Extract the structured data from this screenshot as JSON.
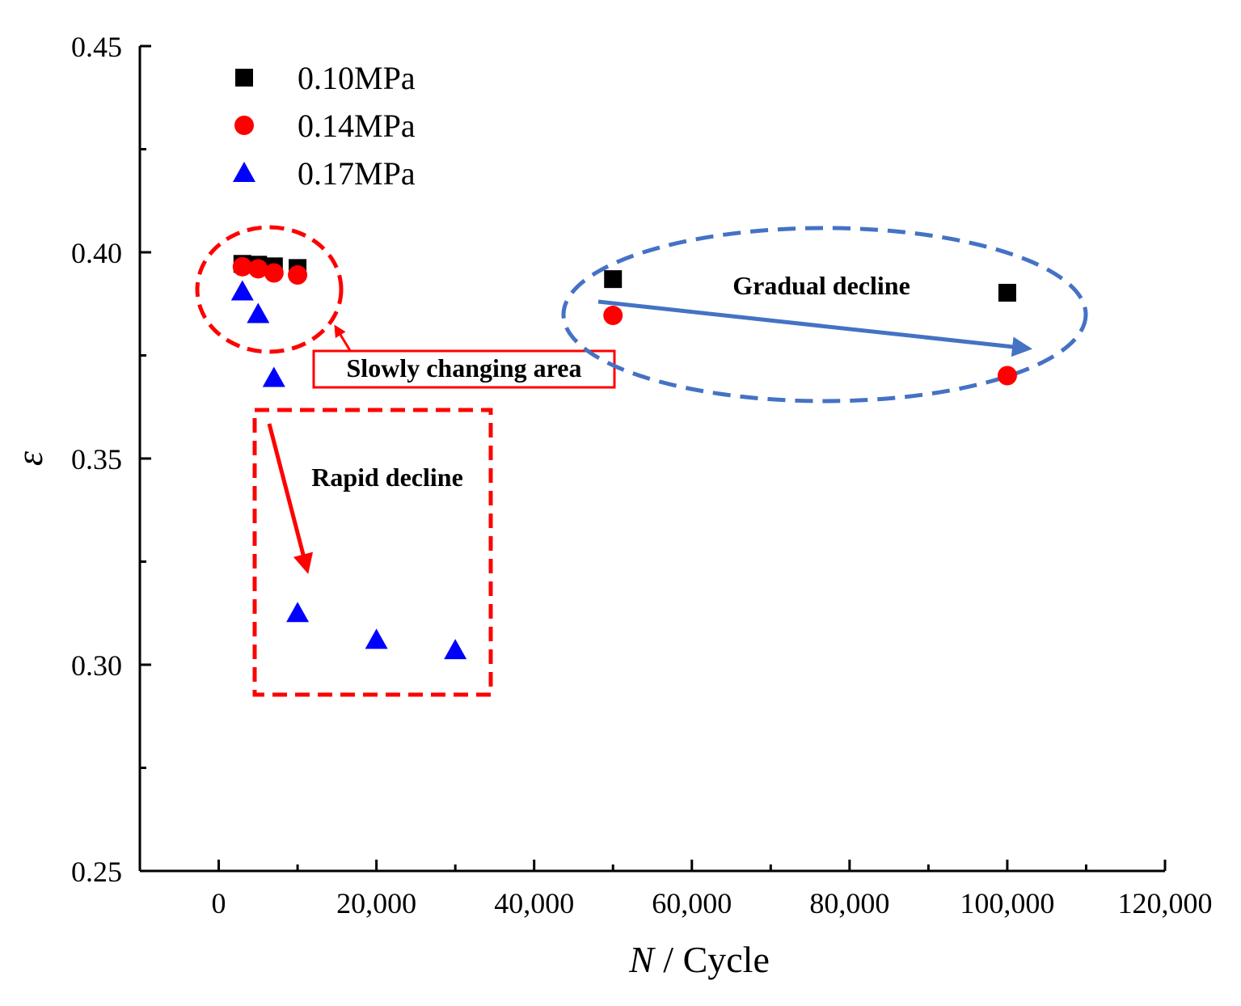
{
  "chart_data": {
    "type": "scatter",
    "title": "",
    "xlabel_var": "N",
    "xlabel_unit": " / Cycle",
    "ylabel": "ε",
    "xlim": [
      -10000,
      120000
    ],
    "ylim": [
      0.25,
      0.45
    ],
    "xticks": [
      0,
      20000,
      40000,
      60000,
      80000,
      100000,
      120000
    ],
    "xtick_labels": [
      "0",
      "20,000",
      "40,000",
      "60,000",
      "80,000",
      "100,000",
      "120,000"
    ],
    "yticks": [
      0.25,
      0.3,
      0.35,
      0.4,
      0.45
    ],
    "ytick_labels": [
      "0.25",
      "0.30",
      "0.35",
      "0.40",
      "0.45"
    ],
    "grid": false,
    "legend_position": "top-left",
    "series": [
      {
        "name": "0.10MPa",
        "marker": "square",
        "color": "#000000",
        "points": [
          [
            3000,
            0.3972
          ],
          [
            5000,
            0.397
          ],
          [
            7000,
            0.3966
          ],
          [
            10000,
            0.3962
          ],
          [
            50000,
            0.3935
          ],
          [
            100000,
            0.3902
          ]
        ]
      },
      {
        "name": "0.14MPa",
        "marker": "circle",
        "color": "#ff0000",
        "points": [
          [
            3000,
            0.3965
          ],
          [
            5000,
            0.396
          ],
          [
            7000,
            0.395
          ],
          [
            10000,
            0.3945
          ],
          [
            50000,
            0.3847
          ],
          [
            100000,
            0.3701
          ]
        ]
      },
      {
        "name": "0.17MPa",
        "marker": "triangle",
        "color": "#0000ff",
        "points": [
          [
            3000,
            0.3905
          ],
          [
            5000,
            0.385
          ],
          [
            7000,
            0.3695
          ],
          [
            10000,
            0.3125
          ],
          [
            20000,
            0.306
          ],
          [
            30000,
            0.3035
          ]
        ]
      }
    ],
    "annotations": {
      "slowly_changing": "Slowly changing area",
      "rapid_decline": "Rapid decline",
      "gradual_decline": "Gradual decline"
    },
    "annotation_colors": {
      "red": "#ff0000",
      "blue": "#4472c4",
      "box_border": "#ff0000"
    }
  }
}
